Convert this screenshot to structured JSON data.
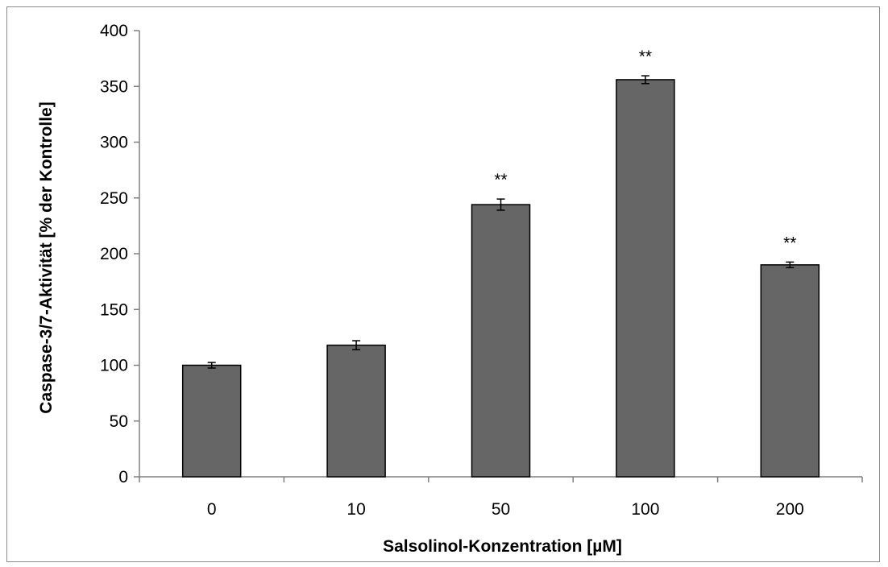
{
  "chart_data": {
    "type": "bar",
    "title": "",
    "xlabel": "Salsolinol-Konzentration [µM]",
    "ylabel": "Caspase-3/7-Aktivität  [% der Kontrolle]",
    "ylim": [
      0,
      400
    ],
    "yticks": [
      "0",
      "50",
      "100",
      "150",
      "200",
      "250",
      "300",
      "350",
      "400"
    ],
    "categories": [
      "0",
      "10",
      "50",
      "100",
      "200"
    ],
    "values": [
      100,
      118,
      244,
      356,
      190
    ],
    "errors": [
      2.5,
      4,
      5,
      3.5,
      2.5
    ],
    "annotations": [
      "",
      "",
      "**",
      "**",
      "**"
    ],
    "bar_color": "#666666",
    "grid": false,
    "legend": "none"
  }
}
